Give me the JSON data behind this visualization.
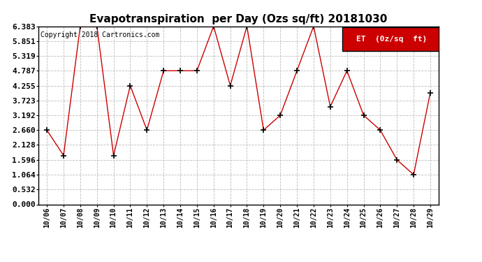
{
  "title": "Evapotranspiration  per Day (Ozs sq/ft) 20181030",
  "copyright": "Copyright 2018 Cartronics.com",
  "legend_label": "ET  (0z/sq  ft)",
  "x_labels": [
    "10/06",
    "10/07",
    "10/08",
    "10/09",
    "10/10",
    "10/11",
    "10/12",
    "10/13",
    "10/14",
    "10/15",
    "10/16",
    "10/17",
    "10/18",
    "10/19",
    "10/20",
    "10/21",
    "10/22",
    "10/23",
    "10/24",
    "10/25",
    "10/26",
    "10/27",
    "10/28",
    "10/29"
  ],
  "y_values": [
    2.66,
    1.75,
    6.383,
    6.383,
    1.75,
    4.255,
    2.66,
    4.787,
    4.787,
    4.787,
    6.383,
    4.255,
    6.383,
    2.66,
    3.192,
    4.787,
    6.383,
    3.5,
    4.787,
    3.192,
    2.66,
    1.596,
    1.064,
    4.0
  ],
  "yticks": [
    0.0,
    0.532,
    1.064,
    1.596,
    2.128,
    2.66,
    3.192,
    3.723,
    4.255,
    4.787,
    5.319,
    5.851,
    6.383
  ],
  "ymin": 0.0,
  "ymax": 6.383,
  "line_color": "#cc0000",
  "marker": "+",
  "marker_color": "black",
  "marker_size": 5,
  "background_color": "#ffffff",
  "grid_color": "#bbbbbb",
  "legend_bg": "#cc0000",
  "legend_text_color": "#ffffff",
  "title_fontsize": 11,
  "copyright_fontsize": 7,
  "tick_fontsize": 7,
  "ytick_fontsize": 8,
  "legend_fontsize": 8
}
